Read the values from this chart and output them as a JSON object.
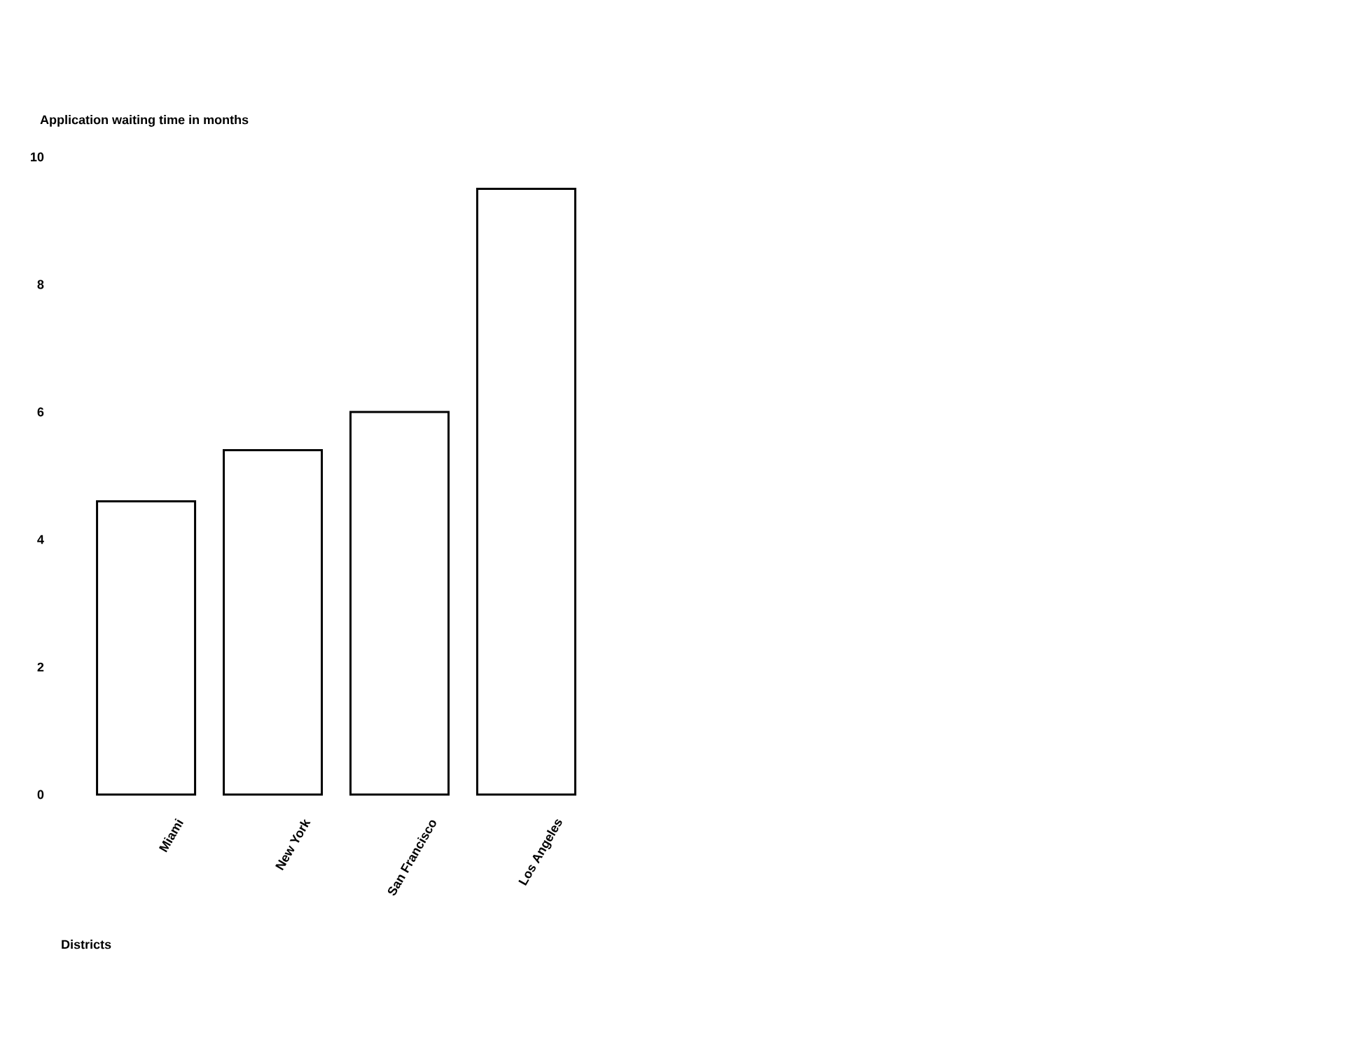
{
  "chart_data": {
    "type": "bar",
    "ylabel": "Application waiting time in months",
    "xlabel": "Districts",
    "categories": [
      "Miami",
      "New York",
      "San Francisco",
      "Los Angeles"
    ],
    "values": [
      4.6,
      5.4,
      6.0,
      9.5
    ],
    "color": "#ffffff",
    "ylim": [
      0,
      10
    ],
    "yticks": [
      0,
      2,
      4,
      6,
      8,
      10
    ]
  }
}
